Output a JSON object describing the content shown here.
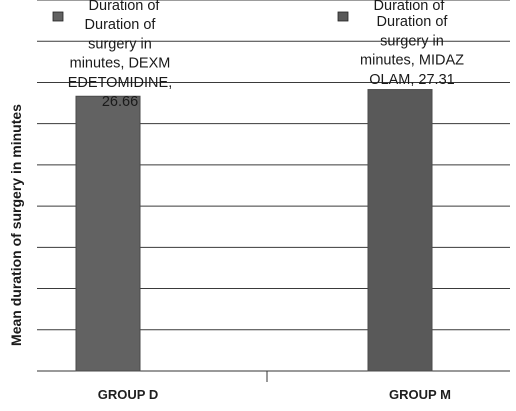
{
  "chart_data": {
    "type": "bar",
    "categories": [
      "GROUP D",
      "GROUP M"
    ],
    "series": [
      {
        "name": "Duration of surgery in minutes, DEXMEDETOMIDINE",
        "category": "GROUP D",
        "value": 26.66,
        "label_lines": [
          "Duration of",
          "surgery in",
          "minutes, DEXM",
          "EDETOMIDINE,",
          "26.66"
        ],
        "legend_lines": [
          "Duration of"
        ],
        "color": "#626262"
      },
      {
        "name": "Duration of surgery in minutes, MIDAZOLAM",
        "category": "GROUP M",
        "value": 27.31,
        "label_lines": [
          "Duration of",
          "surgery in",
          "minutes, MIDAZ",
          "OLAM, 27.31"
        ],
        "legend_lines": [
          "Duration of"
        ],
        "color": "#595959"
      }
    ],
    "ylabel": "Mean duration of surgery in minutes",
    "xlabel": "",
    "title": "",
    "grid": true,
    "legend_position": "top",
    "ylim": [
      0,
      36
    ]
  }
}
